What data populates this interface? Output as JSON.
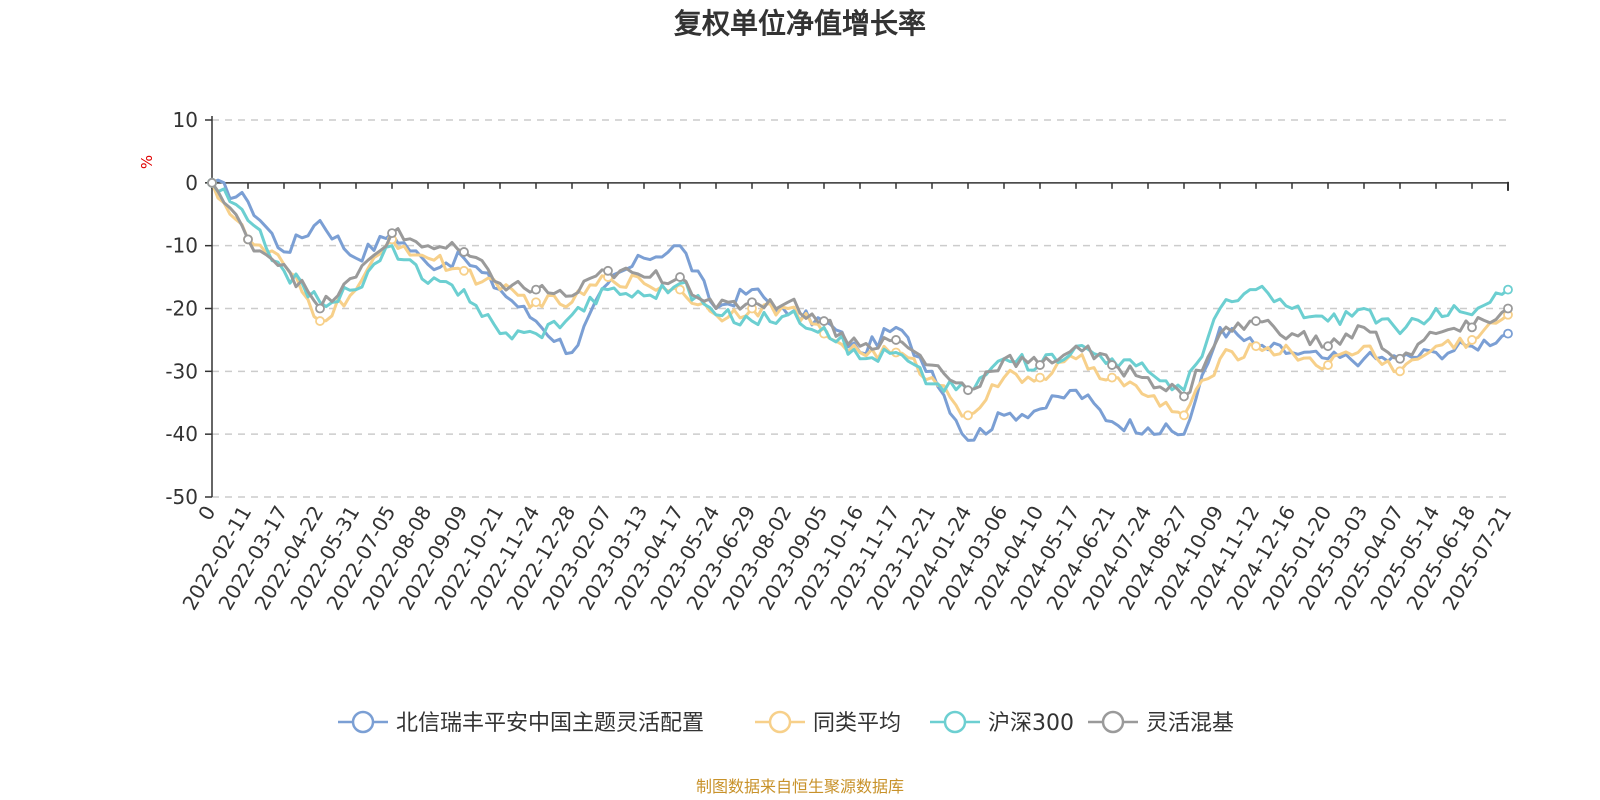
{
  "chart_data": {
    "type": "line",
    "title": "复权单位净值增长率",
    "ylabel": "%",
    "ylim": [
      -50,
      10
    ],
    "yticks": [
      10,
      0,
      -10,
      -20,
      -30,
      -40,
      -50
    ],
    "grid": true,
    "legend_position": "bottom",
    "source": "制图数据来自恒生聚源数据库",
    "x": [
      "0",
      "2022-02-11",
      "2022-03-17",
      "2022-04-22",
      "2022-05-31",
      "2022-07-05",
      "2022-08-08",
      "2022-09-09",
      "2022-10-21",
      "2022-11-24",
      "2022-12-28",
      "2023-02-07",
      "2023-03-13",
      "2023-04-17",
      "2023-05-24",
      "2023-06-29",
      "2023-08-02",
      "2023-09-05",
      "2023-10-16",
      "2023-11-17",
      "2023-12-21",
      "2024-01-24",
      "2024-03-06",
      "2024-04-10",
      "2024-05-17",
      "2024-06-21",
      "2024-07-24",
      "2024-08-27",
      "2024-10-09",
      "2024-11-12",
      "2024-12-16",
      "2025-01-20",
      "2025-03-03",
      "2025-04-07",
      "2025-05-14",
      "2025-06-18",
      "2025-07-21"
    ],
    "series": [
      {
        "name": "北信瑞丰平安中国主题灵活配置",
        "color": "#7b9fd4",
        "values": [
          0,
          -3,
          -11,
          -6,
          -12,
          -8,
          -13,
          -12,
          -17,
          -22,
          -27,
          -16,
          -12,
          -10,
          -20,
          -17,
          -21,
          -22,
          -27,
          -23,
          -30,
          -41,
          -37,
          -36,
          -33,
          -38,
          -39,
          -40,
          -23,
          -26,
          -27,
          -28,
          -28,
          -28,
          -27,
          -26,
          -24
        ]
      },
      {
        "name": "同类平均",
        "color": "#f7d08a",
        "values": [
          0,
          -9,
          -13,
          -22,
          -17,
          -9,
          -12,
          -14,
          -17,
          -19,
          -19,
          -15,
          -16,
          -17,
          -21,
          -20,
          -20,
          -24,
          -27,
          -27,
          -31,
          -37,
          -31,
          -31,
          -28,
          -31,
          -34,
          -37,
          -28,
          -26,
          -27,
          -29,
          -26,
          -30,
          -26,
          -25,
          -21
        ]
      },
      {
        "name": "沪深300",
        "color": "#6ccfd1",
        "values": [
          0,
          -6,
          -14,
          -19,
          -17,
          -10,
          -16,
          -17,
          -24,
          -24,
          -21,
          -17,
          -18,
          -16,
          -21,
          -22,
          -21,
          -23,
          -28,
          -27,
          -32,
          -33,
          -28,
          -29,
          -26,
          -28,
          -30,
          -33,
          -20,
          -17,
          -20,
          -22,
          -20,
          -24,
          -20,
          -21,
          -17
        ]
      },
      {
        "name": "灵活混基",
        "color": "#9a9a9a",
        "values": [
          0,
          -9,
          -13,
          -20,
          -15,
          -8,
          -10,
          -11,
          -16,
          -17,
          -18,
          -14,
          -15,
          -15,
          -20,
          -19,
          -19,
          -22,
          -26,
          -25,
          -29,
          -33,
          -28,
          -29,
          -26,
          -29,
          -31,
          -34,
          -24,
          -22,
          -24,
          -26,
          -23,
          -28,
          -24,
          -23,
          -20
        ]
      }
    ]
  }
}
